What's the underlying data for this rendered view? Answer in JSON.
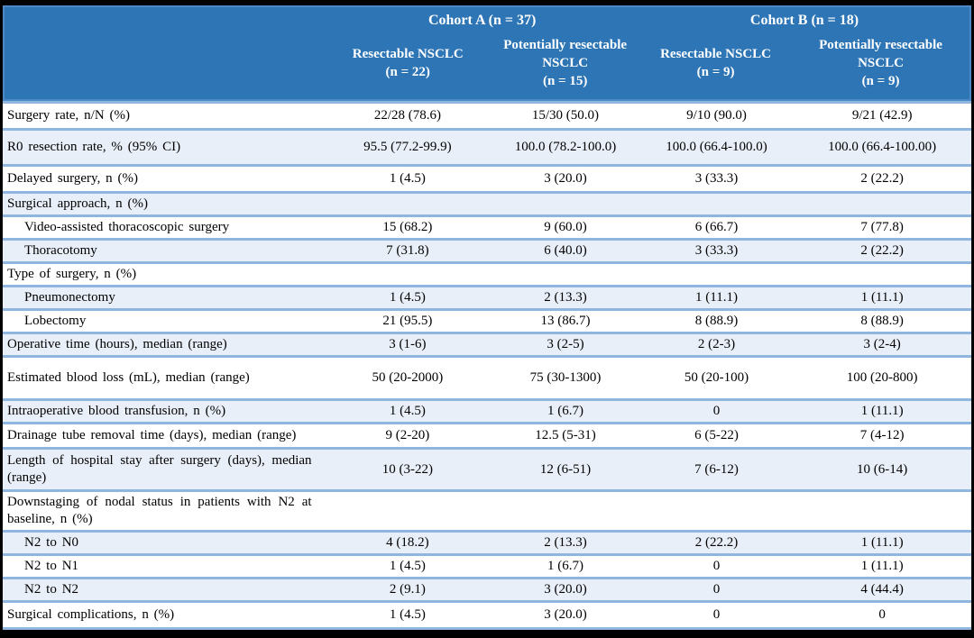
{
  "table": {
    "cohorts": [
      {
        "label": "Cohort A (n = 37)"
      },
      {
        "label": "Cohort B (n = 18)"
      }
    ],
    "columns": [
      {
        "name": "Resectable NSCLC",
        "n": "(n = 22)"
      },
      {
        "name": "Potentially resectable NSCLC",
        "n": "(n = 15)"
      },
      {
        "name": "Resectable NSCLC",
        "n": "(n = 9)"
      },
      {
        "name": "Potentially resectable NSCLC",
        "n": "(n = 9)"
      }
    ],
    "rows": [
      {
        "label": "Surgery rate, n/N (%)",
        "indent": false,
        "values": [
          "22/28 (78.6)",
          "15/30 (50.0)",
          "9/10 (90.0)",
          "9/21 (42.9)"
        ]
      },
      {
        "label": "R0 resection rate, % (95% CI)",
        "indent": false,
        "values": [
          "95.5 (77.2-99.9)",
          "100.0 (78.2-100.0)",
          "100.0 (66.4-100.0)",
          "100.0 (66.4-100.00)"
        ]
      },
      {
        "label": "Delayed surgery, n (%)",
        "indent": false,
        "values": [
          "1 (4.5)",
          "3 (20.0)",
          "3 (33.3)",
          "2 (22.2)"
        ]
      },
      {
        "label": "Surgical approach, n (%)",
        "indent": false,
        "values": [
          "",
          "",
          "",
          ""
        ]
      },
      {
        "label": "Video-assisted thoracoscopic surgery",
        "indent": true,
        "values": [
          "15 (68.2)",
          "9 (60.0)",
          "6 (66.7)",
          "7 (77.8)"
        ]
      },
      {
        "label": "Thoracotomy",
        "indent": true,
        "values": [
          "7 (31.8)",
          "6 (40.0)",
          "3 (33.3)",
          "2 (22.2)"
        ]
      },
      {
        "label": "Type of surgery, n (%)",
        "indent": false,
        "values": [
          "",
          "",
          "",
          ""
        ]
      },
      {
        "label": "Pneumonectomy",
        "indent": true,
        "values": [
          "1 (4.5)",
          "2 (13.3)",
          "1 (11.1)",
          "1 (11.1)"
        ]
      },
      {
        "label": "Lobectomy",
        "indent": true,
        "values": [
          "21 (95.5)",
          "13 (86.7)",
          "8 (88.9)",
          "8 (88.9)"
        ]
      },
      {
        "label": "Operative time (hours), median (range)",
        "indent": false,
        "values": [
          "3 (1-6)",
          "3 (2-5)",
          "2 (2-3)",
          "3 (2-4)"
        ]
      },
      {
        "label": "Estimated blood loss (mL), median (range)",
        "indent": false,
        "values": [
          "50 (20-2000)",
          "75 (30-1300)",
          "50 (20-100)",
          "100 (20-800)"
        ]
      },
      {
        "label": "Intraoperative blood transfusion, n (%)",
        "indent": false,
        "values": [
          "1 (4.5)",
          "1 (6.7)",
          "0",
          "1 (11.1)"
        ]
      },
      {
        "label": "Drainage tube removal time (days), median (range)",
        "indent": false,
        "values": [
          "9 (2-20)",
          "12.5 (5-31)",
          "6 (5-22)",
          "7 (4-12)"
        ]
      },
      {
        "label": "Length of hospital stay after surgery (days), median (range)",
        "indent": false,
        "values": [
          "10 (3-22)",
          "12 (6-51)",
          "7 (6-12)",
          "10 (6-14)"
        ]
      },
      {
        "label": "Downstaging of nodal status in patients with N2 at baseline, n (%)",
        "indent": false,
        "values": [
          "",
          "",
          "",
          ""
        ]
      },
      {
        "label": "N2 to N0",
        "indent": true,
        "values": [
          "4 (18.2)",
          "2 (13.3)",
          "2 (22.2)",
          "1 (11.1)"
        ]
      },
      {
        "label": "N2 to N1",
        "indent": true,
        "values": [
          "1 (4.5)",
          "1 (6.7)",
          "0",
          "1 (11.1)"
        ]
      },
      {
        "label": "N2 to N2",
        "indent": true,
        "values": [
          "2 (9.1)",
          "3 (20.0)",
          "0",
          "4 (44.4)"
        ]
      },
      {
        "label": "Surgical complications, n (%)",
        "indent": false,
        "values": [
          "1 (4.5)",
          "3 (20.0)",
          "0",
          "0"
        ]
      }
    ]
  },
  "colors": {
    "header_bg": "#2E75B6",
    "header_text": "#FFFFFF",
    "alt_row_bg": "#E9EFF8",
    "row_border": "#8FB6DF",
    "frame": "#000000",
    "body_text": "#000000"
  }
}
